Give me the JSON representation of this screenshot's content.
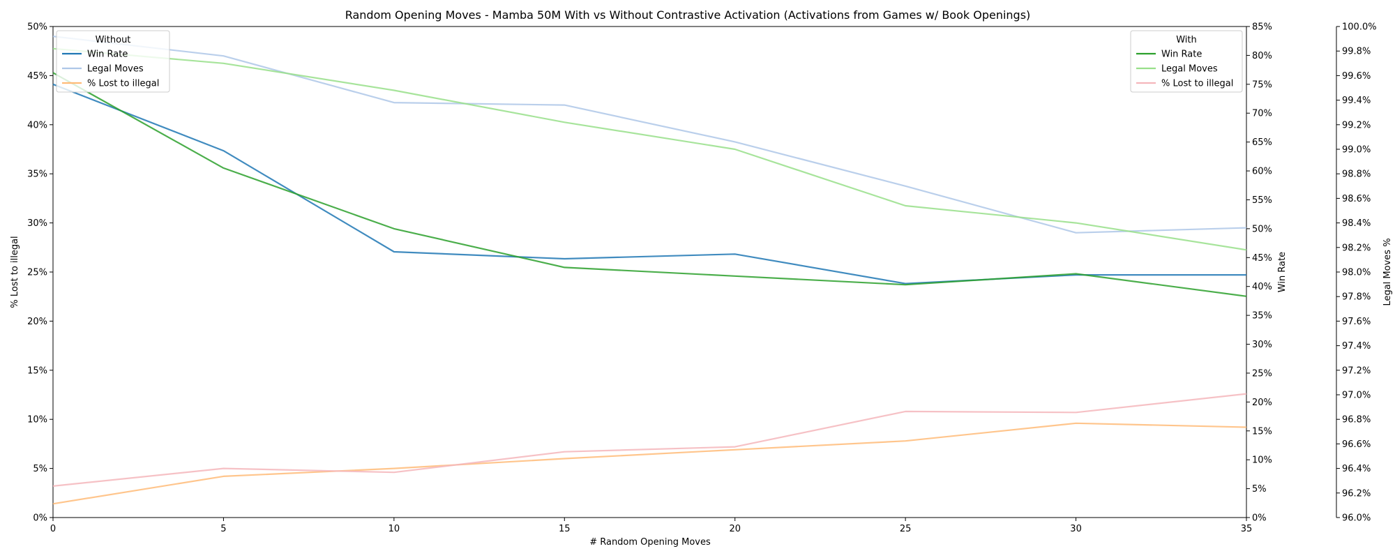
{
  "chart_data": {
    "type": "line",
    "title": "Random Opening Moves - Mamba 50M With vs Without Contrastive Activation (Activations from Games w/ Book Openings)",
    "xlabel": "# Random Opening Moves",
    "x": [
      0,
      5,
      10,
      15,
      20,
      25,
      30,
      35
    ],
    "xlim": [
      0,
      35
    ],
    "x_ticks": [
      "0",
      "5",
      "10",
      "15",
      "20",
      "25",
      "30",
      "35"
    ],
    "grid": false,
    "axes": {
      "left": {
        "label": "% Lost to illegal",
        "lim": [
          0,
          50
        ],
        "ticks": [
          "0%",
          "5%",
          "10%",
          "15%",
          "20%",
          "25%",
          "30%",
          "35%",
          "40%",
          "45%",
          "50%"
        ]
      },
      "right1": {
        "label": "Win Rate",
        "lim": [
          0,
          85
        ],
        "ticks": [
          "0%",
          "5%",
          "10%",
          "15%",
          "20%",
          "25%",
          "30%",
          "35%",
          "40%",
          "45%",
          "50%",
          "55%",
          "60%",
          "65%",
          "70%",
          "75%",
          "80%",
          "85%"
        ]
      },
      "right2": {
        "label": "Legal Moves %",
        "lim": [
          96.0,
          100.0
        ],
        "ticks": [
          "96.0%",
          "96.2%",
          "96.4%",
          "96.6%",
          "96.8%",
          "97.0%",
          "97.2%",
          "97.4%",
          "97.6%",
          "97.8%",
          "98.0%",
          "98.2%",
          "98.4%",
          "98.6%",
          "98.8%",
          "99.0%",
          "99.2%",
          "99.4%",
          "99.6%",
          "99.8%",
          "100.0%"
        ]
      }
    },
    "series": [
      {
        "group": "Without",
        "name": "Win Rate",
        "axis": "right1",
        "color": "#1f77b4",
        "values": [
          75.0,
          63.5,
          46.0,
          44.8,
          45.6,
          40.5,
          42.0,
          42.0
        ]
      },
      {
        "group": "Without",
        "name": "Legal Moves",
        "axis": "right2",
        "color": "#aec7e8",
        "values": [
          99.92,
          99.76,
          99.38,
          99.36,
          99.06,
          98.7,
          98.32,
          98.36
        ]
      },
      {
        "group": "Without",
        "name": "% Lost to illegal",
        "axis": "left",
        "color": "#ffbb78",
        "values": [
          1.4,
          4.2,
          5.0,
          6.0,
          6.9,
          7.8,
          9.6,
          9.2
        ]
      },
      {
        "group": "With",
        "name": "Win Rate",
        "axis": "right1",
        "color": "#2ca02c",
        "values": [
          77.0,
          60.5,
          50.0,
          43.3,
          41.8,
          40.3,
          42.2,
          38.3
        ]
      },
      {
        "group": "With",
        "name": "Legal Moves",
        "axis": "right2",
        "color": "#98df8a",
        "values": [
          99.82,
          99.7,
          99.48,
          99.22,
          99.0,
          98.54,
          98.4,
          98.18
        ]
      },
      {
        "group": "With",
        "name": "% Lost to illegal",
        "axis": "left",
        "color": "#f4b6bb",
        "values": [
          3.2,
          5.0,
          4.6,
          6.7,
          7.2,
          10.8,
          10.7,
          12.6
        ]
      }
    ],
    "legends": [
      {
        "title": "Without",
        "position": "top-left",
        "entries": [
          "Win Rate",
          "Legal Moves",
          "% Lost to illegal"
        ]
      },
      {
        "title": "With",
        "position": "top-right",
        "entries": [
          "Win Rate",
          "Legal Moves",
          "% Lost to illegal"
        ]
      }
    ]
  }
}
